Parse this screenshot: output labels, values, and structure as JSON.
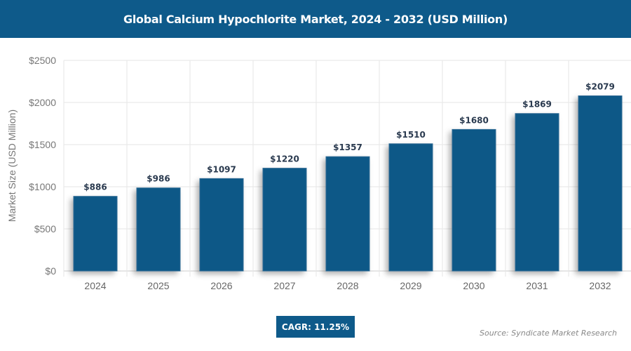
{
  "header": {
    "title": "Global Calcium Hypochlorite Market, 2024 - 2032 (USD Million)"
  },
  "chart_data": {
    "type": "bar",
    "title": "Global Calcium Hypochlorite Market, 2024 - 2032 (USD Million)",
    "categories": [
      "2024",
      "2025",
      "2026",
      "2027",
      "2028",
      "2029",
      "2030",
      "2031",
      "2032"
    ],
    "values": [
      886,
      986,
      1097,
      1220,
      1357,
      1510,
      1680,
      1869,
      2079
    ],
    "data_labels": [
      "$886",
      "$986",
      "$1097",
      "$1220",
      "$1357",
      "$1510",
      "$1680",
      "$1869",
      "$2079"
    ],
    "xlabel": "",
    "ylabel": "Market Size (USD Million)",
    "ylim": [
      0,
      2500
    ],
    "yticks": [
      0,
      500,
      1000,
      1500,
      2000,
      2500
    ],
    "ytick_labels": [
      "$0",
      "$500",
      "$1000",
      "$1500",
      "$2000",
      "$2500"
    ],
    "grid": true,
    "bar_color": "#0d5887"
  },
  "footer": {
    "cagr": "CAGR: 11.25%",
    "source": "Source: Syndicate Market Research"
  }
}
